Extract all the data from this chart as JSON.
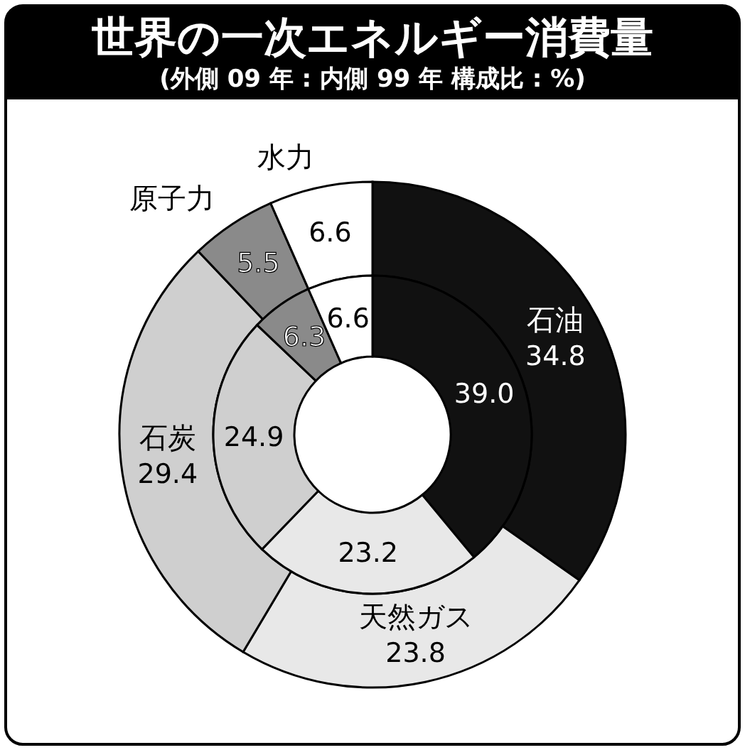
{
  "chart_data": {
    "type": "donut",
    "title": "世界の一次エネルギー消費量",
    "subtitle": "(外側 09 年 : 内側 99 年 構成比 : %)",
    "categories": [
      "石油",
      "天然ガス",
      "石炭",
      "原子力",
      "水力"
    ],
    "colors": [
      "#111111",
      "#e8e8e8",
      "#cfcfcf",
      "#8a8a8a",
      "#ffffff"
    ],
    "series": [
      {
        "values": [
          34.8,
          23.8,
          29.4,
          5.5,
          6.6
        ],
        "value_labels": [
          "34.8",
          "23.8",
          "29.4",
          "5.5",
          "6.6"
        ]
      },
      {
        "values": [
          39.0,
          23.2,
          24.9,
          6.3,
          6.6
        ],
        "value_labels": [
          "39.0",
          "23.2",
          "24.9",
          "6.3",
          "6.6"
        ]
      }
    ],
    "data_labels": true
  }
}
